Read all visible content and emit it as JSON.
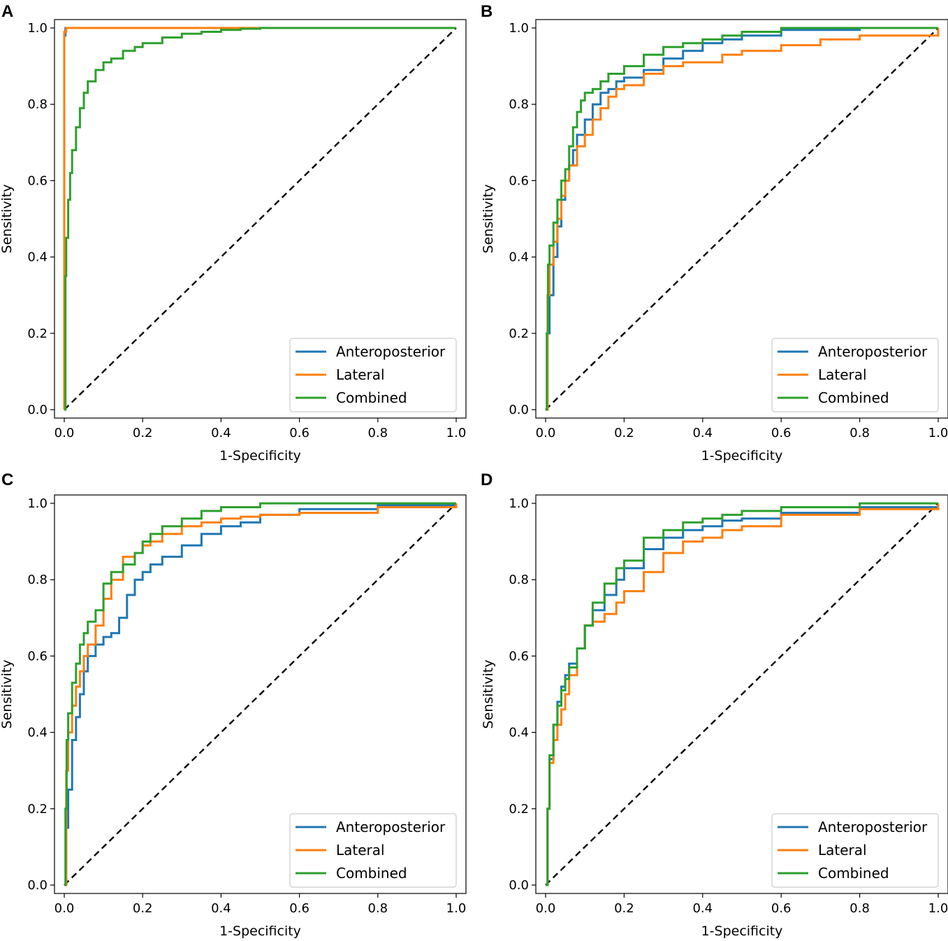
{
  "colors": {
    "anteroposterior": "#1f77b4",
    "lateral": "#ff7f0e",
    "combined": "#2ca02c",
    "reference": "#000000"
  },
  "chart_data": [
    {
      "panel": "A",
      "type": "line",
      "xlabel": "1-Specificity",
      "ylabel": "Sensitivity",
      "xlim": [
        0,
        1
      ],
      "ylim": [
        0,
        1
      ],
      "xticks": [
        "0.0",
        "0.2",
        "0.4",
        "0.6",
        "0.8",
        "1.0"
      ],
      "yticks": [
        "0.0",
        "0.2",
        "0.4",
        "0.6",
        "0.8",
        "1.0"
      ],
      "legend_position": "lower-right",
      "series": [
        {
          "name": "Anteroposterior",
          "key": "anteroposterior",
          "x": [
            0,
            0,
            0.003,
            1
          ],
          "y": [
            0,
            0.98,
            1.0,
            1.0
          ]
        },
        {
          "name": "Lateral",
          "key": "lateral",
          "x": [
            0,
            0,
            0.005,
            1
          ],
          "y": [
            0,
            0.99,
            1.0,
            1.0
          ]
        },
        {
          "name": "Combined",
          "key": "combined",
          "x": [
            0,
            0.003,
            0.005,
            0.01,
            0.015,
            0.02,
            0.03,
            0.04,
            0.05,
            0.06,
            0.08,
            0.1,
            0.12,
            0.15,
            0.18,
            0.2,
            0.25,
            0.3,
            0.35,
            0.4,
            0.45,
            0.5,
            0.6,
            0.8,
            1.0
          ],
          "y": [
            0,
            0.35,
            0.45,
            0.55,
            0.62,
            0.68,
            0.74,
            0.79,
            0.83,
            0.86,
            0.89,
            0.91,
            0.92,
            0.94,
            0.95,
            0.96,
            0.975,
            0.985,
            0.99,
            0.995,
            0.998,
            1.0,
            1.0,
            1.0,
            1.0
          ]
        }
      ]
    },
    {
      "panel": "B",
      "type": "line",
      "xlabel": "1-Specificity",
      "ylabel": "Sensitivity",
      "xlim": [
        0,
        1
      ],
      "ylim": [
        0,
        1
      ],
      "xticks": [
        "0.0",
        "0.2",
        "0.4",
        "0.6",
        "0.8",
        "1.0"
      ],
      "yticks": [
        "0.0",
        "0.2",
        "0.4",
        "0.6",
        "0.8",
        "1.0"
      ],
      "legend_position": "lower-right",
      "series": [
        {
          "name": "Anteroposterior",
          "key": "anteroposterior",
          "x": [
            0,
            0.005,
            0.01,
            0.02,
            0.03,
            0.04,
            0.05,
            0.06,
            0.07,
            0.08,
            0.1,
            0.12,
            0.14,
            0.16,
            0.18,
            0.2,
            0.25,
            0.3,
            0.35,
            0.4,
            0.45,
            0.5,
            0.6,
            0.8,
            1.0
          ],
          "y": [
            0,
            0.2,
            0.3,
            0.4,
            0.48,
            0.55,
            0.6,
            0.64,
            0.68,
            0.72,
            0.76,
            0.8,
            0.83,
            0.84,
            0.86,
            0.87,
            0.89,
            0.92,
            0.94,
            0.96,
            0.97,
            0.98,
            0.995,
            1.0,
            1.0
          ]
        },
        {
          "name": "Lateral",
          "key": "lateral",
          "x": [
            0,
            0.005,
            0.01,
            0.02,
            0.03,
            0.04,
            0.05,
            0.06,
            0.08,
            0.1,
            0.12,
            0.14,
            0.16,
            0.18,
            0.2,
            0.25,
            0.3,
            0.35,
            0.4,
            0.45,
            0.5,
            0.6,
            0.7,
            0.8,
            1.0
          ],
          "y": [
            0,
            0.3,
            0.38,
            0.44,
            0.5,
            0.56,
            0.6,
            0.64,
            0.69,
            0.72,
            0.76,
            0.79,
            0.82,
            0.84,
            0.85,
            0.88,
            0.9,
            0.91,
            0.91,
            0.93,
            0.94,
            0.955,
            0.97,
            0.98,
            1.0
          ]
        },
        {
          "name": "Combined",
          "key": "combined",
          "x": [
            0,
            0.003,
            0.006,
            0.01,
            0.02,
            0.03,
            0.04,
            0.05,
            0.06,
            0.07,
            0.08,
            0.09,
            0.1,
            0.12,
            0.14,
            0.16,
            0.2,
            0.25,
            0.3,
            0.35,
            0.4,
            0.45,
            0.5,
            0.6,
            1.0
          ],
          "y": [
            0,
            0.2,
            0.38,
            0.43,
            0.49,
            0.55,
            0.6,
            0.63,
            0.69,
            0.74,
            0.78,
            0.81,
            0.83,
            0.84,
            0.86,
            0.88,
            0.9,
            0.93,
            0.95,
            0.96,
            0.97,
            0.98,
            0.99,
            1.0,
            1.0
          ]
        }
      ]
    },
    {
      "panel": "C",
      "type": "line",
      "xlabel": "1-Specificity",
      "ylabel": "Sensitivity",
      "xlim": [
        0,
        1
      ],
      "ylim": [
        0,
        1
      ],
      "xticks": [
        "0.0",
        "0.2",
        "0.4",
        "0.6",
        "0.8",
        "1.0"
      ],
      "yticks": [
        "0.0",
        "0.2",
        "0.4",
        "0.6",
        "0.8",
        "1.0"
      ],
      "legend_position": "lower-right",
      "series": [
        {
          "name": "Anteroposterior",
          "key": "anteroposterior",
          "x": [
            0,
            0.005,
            0.01,
            0.02,
            0.03,
            0.04,
            0.05,
            0.06,
            0.08,
            0.1,
            0.12,
            0.14,
            0.16,
            0.18,
            0.2,
            0.22,
            0.25,
            0.3,
            0.35,
            0.4,
            0.45,
            0.5,
            0.6,
            0.8,
            1.0
          ],
          "y": [
            0,
            0.15,
            0.25,
            0.38,
            0.44,
            0.5,
            0.56,
            0.6,
            0.63,
            0.65,
            0.66,
            0.7,
            0.76,
            0.8,
            0.82,
            0.84,
            0.86,
            0.89,
            0.92,
            0.94,
            0.95,
            0.97,
            0.985,
            0.995,
            1.0
          ]
        },
        {
          "name": "Lateral",
          "key": "lateral",
          "x": [
            0,
            0.005,
            0.01,
            0.02,
            0.03,
            0.04,
            0.05,
            0.06,
            0.08,
            0.1,
            0.12,
            0.15,
            0.18,
            0.2,
            0.22,
            0.25,
            0.3,
            0.35,
            0.4,
            0.45,
            0.5,
            0.6,
            0.8,
            1.0
          ],
          "y": [
            0,
            0.3,
            0.4,
            0.47,
            0.52,
            0.56,
            0.6,
            0.63,
            0.68,
            0.75,
            0.8,
            0.86,
            0.87,
            0.89,
            0.9,
            0.92,
            0.94,
            0.95,
            0.96,
            0.965,
            0.97,
            0.975,
            0.99,
            1.0
          ]
        },
        {
          "name": "Combined",
          "key": "combined",
          "x": [
            0,
            0.003,
            0.006,
            0.01,
            0.02,
            0.03,
            0.04,
            0.05,
            0.06,
            0.08,
            0.1,
            0.12,
            0.15,
            0.18,
            0.2,
            0.22,
            0.25,
            0.3,
            0.35,
            0.4,
            0.5,
            0.6,
            1.0
          ],
          "y": [
            0,
            0.2,
            0.38,
            0.45,
            0.53,
            0.58,
            0.63,
            0.66,
            0.69,
            0.72,
            0.79,
            0.82,
            0.84,
            0.87,
            0.9,
            0.92,
            0.94,
            0.96,
            0.98,
            0.99,
            1.0,
            1.0,
            1.0
          ]
        }
      ]
    },
    {
      "panel": "D",
      "type": "line",
      "xlabel": "1-Specificity",
      "ylabel": "Sensitivity",
      "xlim": [
        0,
        1
      ],
      "ylim": [
        0,
        1
      ],
      "xticks": [
        "0.0",
        "0.2",
        "0.4",
        "0.6",
        "0.8",
        "1.0"
      ],
      "yticks": [
        "0.0",
        "0.2",
        "0.4",
        "0.6",
        "0.8",
        "1.0"
      ],
      "legend_position": "lower-right",
      "series": [
        {
          "name": "Anteroposterior",
          "key": "anteroposterior",
          "x": [
            0,
            0.005,
            0.01,
            0.02,
            0.03,
            0.04,
            0.05,
            0.06,
            0.08,
            0.1,
            0.12,
            0.15,
            0.18,
            0.2,
            0.25,
            0.3,
            0.35,
            0.4,
            0.45,
            0.5,
            0.6,
            0.8,
            1.0
          ],
          "y": [
            0,
            0.2,
            0.33,
            0.42,
            0.48,
            0.52,
            0.55,
            0.58,
            0.62,
            0.68,
            0.72,
            0.76,
            0.8,
            0.83,
            0.88,
            0.91,
            0.93,
            0.94,
            0.955,
            0.96,
            0.975,
            0.99,
            1.0
          ]
        },
        {
          "name": "Lateral",
          "key": "lateral",
          "x": [
            0,
            0.005,
            0.01,
            0.02,
            0.03,
            0.04,
            0.05,
            0.06,
            0.08,
            0.1,
            0.12,
            0.15,
            0.18,
            0.2,
            0.25,
            0.3,
            0.35,
            0.4,
            0.45,
            0.5,
            0.6,
            0.8,
            1.0
          ],
          "y": [
            0,
            0.2,
            0.32,
            0.38,
            0.42,
            0.46,
            0.5,
            0.55,
            0.62,
            0.68,
            0.69,
            0.71,
            0.74,
            0.77,
            0.82,
            0.87,
            0.9,
            0.91,
            0.93,
            0.94,
            0.97,
            0.985,
            1.0
          ]
        },
        {
          "name": "Combined",
          "key": "combined",
          "x": [
            0,
            0.005,
            0.01,
            0.02,
            0.03,
            0.04,
            0.05,
            0.06,
            0.08,
            0.1,
            0.12,
            0.15,
            0.18,
            0.2,
            0.25,
            0.3,
            0.35,
            0.4,
            0.45,
            0.5,
            0.6,
            0.8,
            1.0
          ],
          "y": [
            0,
            0.2,
            0.34,
            0.42,
            0.47,
            0.51,
            0.54,
            0.57,
            0.62,
            0.68,
            0.74,
            0.79,
            0.83,
            0.85,
            0.91,
            0.93,
            0.95,
            0.96,
            0.97,
            0.98,
            0.99,
            1.0,
            1.0
          ]
        }
      ]
    }
  ]
}
